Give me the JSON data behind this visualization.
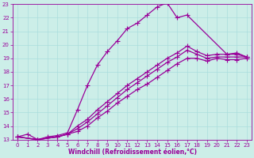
{
  "background_color": "#cceee8",
  "grid_color": "#aadddd",
  "line_color": "#990099",
  "marker": "+",
  "markersize": 4,
  "linewidth": 0.9,
  "xlim": [
    -0.5,
    23.5
  ],
  "ylim": [
    13,
    23
  ],
  "xlabel": "Windchill (Refroidissement éolien,°C)",
  "xlabel_fontsize": 5.5,
  "tick_fontsize": 5.0,
  "xticks": [
    0,
    1,
    2,
    3,
    4,
    5,
    6,
    7,
    8,
    9,
    10,
    11,
    12,
    13,
    14,
    15,
    16,
    17,
    18,
    19,
    20,
    21,
    22,
    23
  ],
  "yticks": [
    13,
    14,
    15,
    16,
    17,
    18,
    19,
    20,
    21,
    22,
    23
  ],
  "figsize": [
    3.2,
    2.0
  ],
  "dpi": 100,
  "curves": [
    {
      "x": [
        0,
        1,
        2,
        3,
        4,
        5,
        6,
        7,
        8,
        9,
        10,
        11,
        12,
        13,
        14,
        15,
        16,
        17,
        21,
        22,
        23
      ],
      "y": [
        13.2,
        13.4,
        13.0,
        13.2,
        13.3,
        13.5,
        15.2,
        17.0,
        18.5,
        19.5,
        20.3,
        21.2,
        21.6,
        22.2,
        22.8,
        23.1,
        22.0,
        22.2,
        19.3,
        19.4,
        19.1
      ]
    },
    {
      "x": [
        0,
        2,
        4,
        5,
        6,
        7,
        8,
        9,
        10,
        11,
        12,
        13,
        14,
        15,
        16,
        17,
        18,
        19,
        20,
        21,
        22,
        23
      ],
      "y": [
        13.2,
        13.0,
        13.2,
        13.4,
        14.0,
        14.5,
        15.2,
        15.8,
        16.4,
        17.0,
        17.5,
        18.0,
        18.5,
        19.0,
        19.4,
        19.9,
        19.5,
        19.2,
        19.3,
        19.3,
        19.3,
        19.1
      ]
    },
    {
      "x": [
        0,
        2,
        4,
        5,
        6,
        7,
        8,
        9,
        10,
        11,
        12,
        13,
        14,
        15,
        16,
        17,
        18,
        19,
        20,
        21,
        22,
        23
      ],
      "y": [
        13.2,
        13.0,
        13.2,
        13.4,
        13.8,
        14.3,
        14.9,
        15.5,
        16.1,
        16.7,
        17.2,
        17.7,
        18.2,
        18.7,
        19.1,
        19.6,
        19.3,
        19.0,
        19.1,
        19.1,
        19.1,
        19.1
      ]
    },
    {
      "x": [
        0,
        2,
        4,
        5,
        6,
        7,
        8,
        9,
        10,
        11,
        12,
        13,
        14,
        15,
        16,
        17,
        18,
        19,
        20,
        21,
        22,
        23
      ],
      "y": [
        13.2,
        13.0,
        13.2,
        13.4,
        13.6,
        14.0,
        14.6,
        15.1,
        15.7,
        16.2,
        16.7,
        17.1,
        17.6,
        18.1,
        18.6,
        19.0,
        19.0,
        18.8,
        19.0,
        18.9,
        18.9,
        19.0
      ]
    }
  ]
}
